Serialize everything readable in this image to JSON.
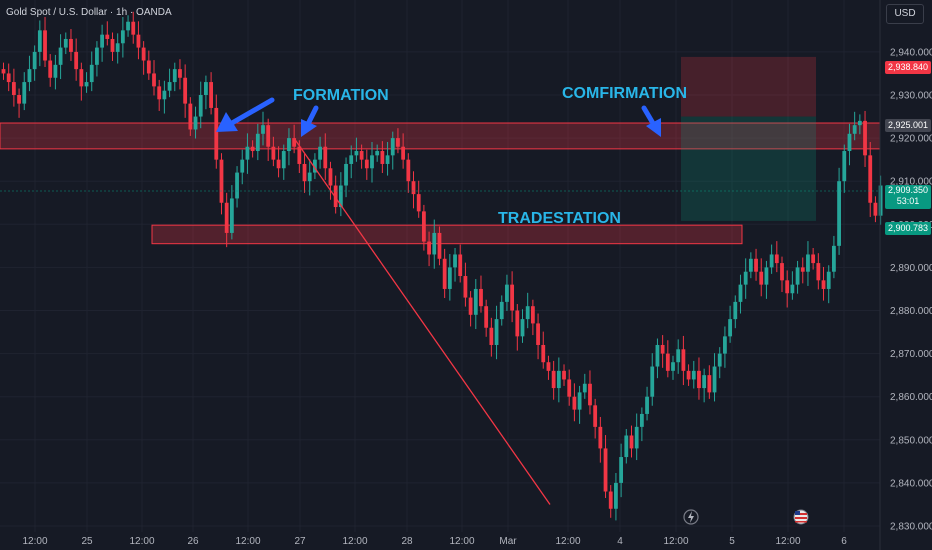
{
  "header": {
    "symbol": "Gold Spot / U.S. Dollar · 1h · OANDA",
    "currency": "USD"
  },
  "colors": {
    "up": "#26a69a",
    "down": "#f23645",
    "background": "#161a25",
    "zone": "#f23645",
    "annotation": "#29b6e8",
    "arrow": "#2962ff"
  },
  "price_labels": [
    {
      "value": "2,938.840",
      "color": "#f23645"
    },
    {
      "value": "2,925.001",
      "color": "#434651"
    },
    {
      "value": "2,909.350",
      "sub": "53:01",
      "color": "#089981"
    },
    {
      "value": "2,900.783",
      "color": "#089981"
    }
  ],
  "annotations": [
    "FORMATION",
    "COMFIRMATION",
    "TRADESTATION"
  ],
  "bottom_icons": [
    "lightning-icon",
    "us-flag-icon"
  ],
  "chart_data": {
    "type": "candlestick",
    "title": "Gold Spot / U.S. Dollar · 1h · OANDA",
    "xlabel": "",
    "ylabel": "",
    "ylim": [
      2829,
      2944
    ],
    "y_ticks": [
      2830,
      2840,
      2850,
      2860,
      2870,
      2880,
      2890,
      2900,
      2910,
      2920,
      2930,
      2940
    ],
    "y_tick_labels": [
      "2,830.000",
      "2,840.000",
      "2,850.000",
      "2,860.000",
      "2,870.000",
      "2,880.000",
      "2,890.000",
      "2,900.000",
      "2,910.000",
      "2,920.000",
      "2,930.000",
      "2,940.000"
    ],
    "x_tick_labels": [
      "12:00",
      "25",
      "12:00",
      "26",
      "12:00",
      "27",
      "12:00",
      "28",
      "12:00",
      "Mar",
      "12:00",
      "4",
      "12:00",
      "5",
      "12:00",
      "6"
    ],
    "grid": true,
    "series_close": [
      2935,
      2933,
      2930,
      2928,
      2933,
      2936,
      2940,
      2945,
      2938,
      2934,
      2937,
      2941,
      2943,
      2940,
      2936,
      2932,
      2933,
      2937,
      2941,
      2944,
      2943,
      2940,
      2942,
      2945,
      2947,
      2944,
      2941,
      2938,
      2935,
      2932,
      2929,
      2931,
      2933,
      2936,
      2934,
      2928,
      2922,
      2925,
      2930,
      2933,
      2927,
      2915,
      2905,
      2898,
      2906,
      2912,
      2915,
      2918,
      2917,
      2921,
      2923,
      2918,
      2915,
      2913,
      2917,
      2920,
      2918,
      2914,
      2910,
      2912,
      2915,
      2918,
      2913,
      2909,
      2904,
      2909,
      2914,
      2916,
      2917,
      2915,
      2913,
      2916,
      2917,
      2914,
      2916,
      2920,
      2918,
      2915,
      2910,
      2907,
      2903,
      2896,
      2893,
      2898,
      2892,
      2885,
      2890,
      2893,
      2888,
      2883,
      2879,
      2885,
      2881,
      2876,
      2872,
      2878,
      2882,
      2886,
      2880,
      2874,
      2878,
      2881,
      2877,
      2872,
      2868,
      2866,
      2862,
      2866,
      2864,
      2860,
      2857,
      2861,
      2863,
      2858,
      2853,
      2848,
      2838,
      2834,
      2840,
      2846,
      2851,
      2848,
      2853,
      2856,
      2860,
      2867,
      2872,
      2870,
      2866,
      2868,
      2871,
      2866,
      2864,
      2866,
      2862,
      2865,
      2861,
      2867,
      2870,
      2874,
      2878,
      2882,
      2886,
      2889,
      2892,
      2889,
      2886,
      2890,
      2893,
      2891,
      2887,
      2884,
      2886,
      2890,
      2889,
      2893,
      2891,
      2887,
      2885,
      2889,
      2895,
      2910,
      2917,
      2921,
      2923,
      2924,
      2916,
      2905,
      2902,
      2909
    ],
    "zones": [
      {
        "label": "resistance",
        "from": 2917.5,
        "to": 2923.5
      },
      {
        "label": "support",
        "from": 2895.5,
        "to": 2899.8
      },
      {
        "label": "stop",
        "from": 2925.0,
        "to": 2938.84
      },
      {
        "label": "target",
        "from": 2900.78,
        "to": 2925.0
      }
    ],
    "trendline": [
      2920,
      2835
    ]
  }
}
